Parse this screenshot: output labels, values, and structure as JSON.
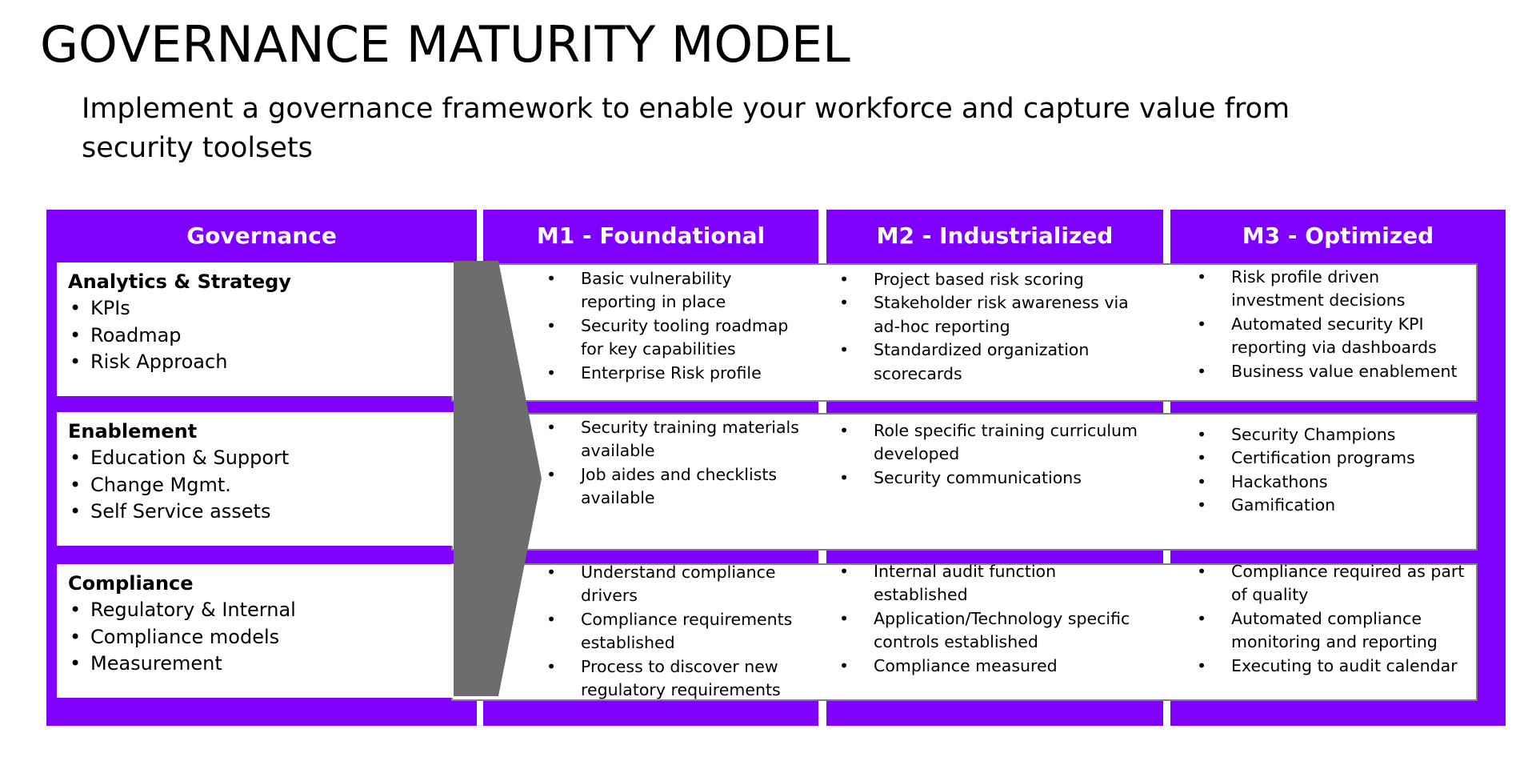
{
  "title": "GOVERNANCE MATURITY MODEL",
  "subtitle": "Implement a governance framework to enable your workforce and capture value from security toolsets",
  "colors": {
    "accent": "#7f00ff",
    "chevron": "#6d6d6d",
    "row_border": "#808080"
  },
  "headers": {
    "governance": "Governance",
    "m1": "M1 - Foundational",
    "m2": "M2 - Industrialized",
    "m3": "M3 - Optimized"
  },
  "rows": [
    {
      "name": "Analytics & Strategy",
      "items": [
        "KPIs",
        "Roadmap",
        "Risk Approach"
      ],
      "m1": [
        "Basic vulnerability reporting in place",
        "Security tooling roadmap for key capabilities",
        "Enterprise Risk profile"
      ],
      "m2": [
        "Project based risk scoring",
        "Stakeholder risk awareness via ad-hoc reporting",
        "Standardized organization scorecards"
      ],
      "m3": [
        "Risk profile driven investment decisions",
        "Automated security KPI reporting via dashboards",
        "Business value enablement"
      ]
    },
    {
      "name": "Enablement",
      "items": [
        "Education & Support",
        "Change Mgmt.",
        "Self Service assets"
      ],
      "m1": [
        "Security training materials available",
        "Job aides and checklists available"
      ],
      "m2": [
        "Role specific training curriculum developed",
        "Security communications"
      ],
      "m3": [
        "Security Champions",
        "Certification programs",
        "Hackathons",
        "Gamification"
      ]
    },
    {
      "name": "Compliance",
      "items": [
        "Regulatory & Internal",
        "Compliance models",
        "Measurement"
      ],
      "m1": [
        "Understand compliance drivers",
        "Compliance requirements established",
        "Process to discover new regulatory requirements"
      ],
      "m2": [
        "Internal audit function established",
        "Application/Technology  specific controls established",
        "Compliance measured"
      ],
      "m3": [
        "Compliance required as part of quality",
        "Automated compliance monitoring and reporting",
        "Executing to audit calendar"
      ]
    }
  ]
}
